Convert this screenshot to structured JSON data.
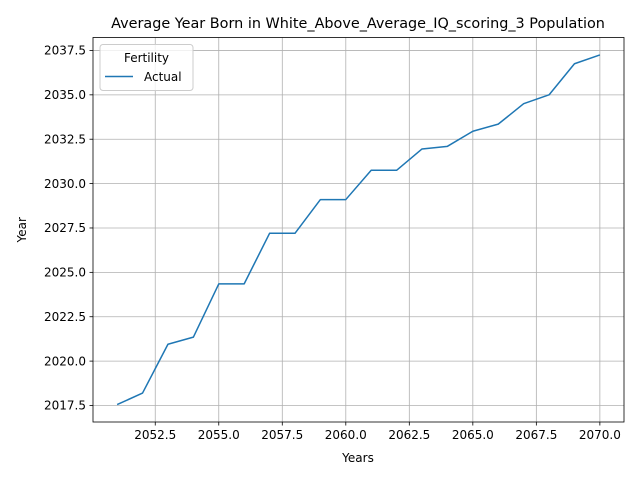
{
  "chart_data": {
    "type": "line",
    "title": "Average Year Born in White_Above_Average_IQ_scoring_3 Population",
    "xlabel": "Years",
    "ylabel": "Year",
    "xlim": [
      2050.05,
      2070.95
    ],
    "ylim": [
      2016.57,
      2038.23
    ],
    "x_ticks": [
      2052.5,
      2055.0,
      2057.5,
      2060.0,
      2062.5,
      2065.0,
      2067.5,
      2070.0
    ],
    "x_tick_labels": [
      "2052.5",
      "2055.0",
      "2057.5",
      "2060.0",
      "2062.5",
      "2065.0",
      "2067.5",
      "2070.0"
    ],
    "y_ticks": [
      2017.5,
      2020.0,
      2022.5,
      2025.0,
      2027.5,
      2030.0,
      2032.5,
      2035.0,
      2037.5
    ],
    "y_tick_labels": [
      "2017.5",
      "2020.0",
      "2022.5",
      "2025.0",
      "2027.5",
      "2030.0",
      "2032.5",
      "2035.0",
      "2037.5"
    ],
    "grid": true,
    "legend": {
      "title": "Fertility",
      "placement": "upper-left"
    },
    "series": [
      {
        "name": "Actual",
        "color": "#1f77b4",
        "x": [
          2051,
          2052,
          2053,
          2054,
          2055,
          2056,
          2057,
          2058,
          2059,
          2060,
          2061,
          2062,
          2063,
          2064,
          2065,
          2066,
          2067,
          2068,
          2069,
          2070
        ],
        "y": [
          2017.55,
          2018.2,
          2020.95,
          2021.35,
          2024.35,
          2024.35,
          2027.2,
          2027.2,
          2029.1,
          2029.1,
          2030.75,
          2030.75,
          2031.95,
          2032.1,
          2032.95,
          2033.35,
          2034.5,
          2035.0,
          2036.75,
          2037.25
        ]
      }
    ]
  }
}
